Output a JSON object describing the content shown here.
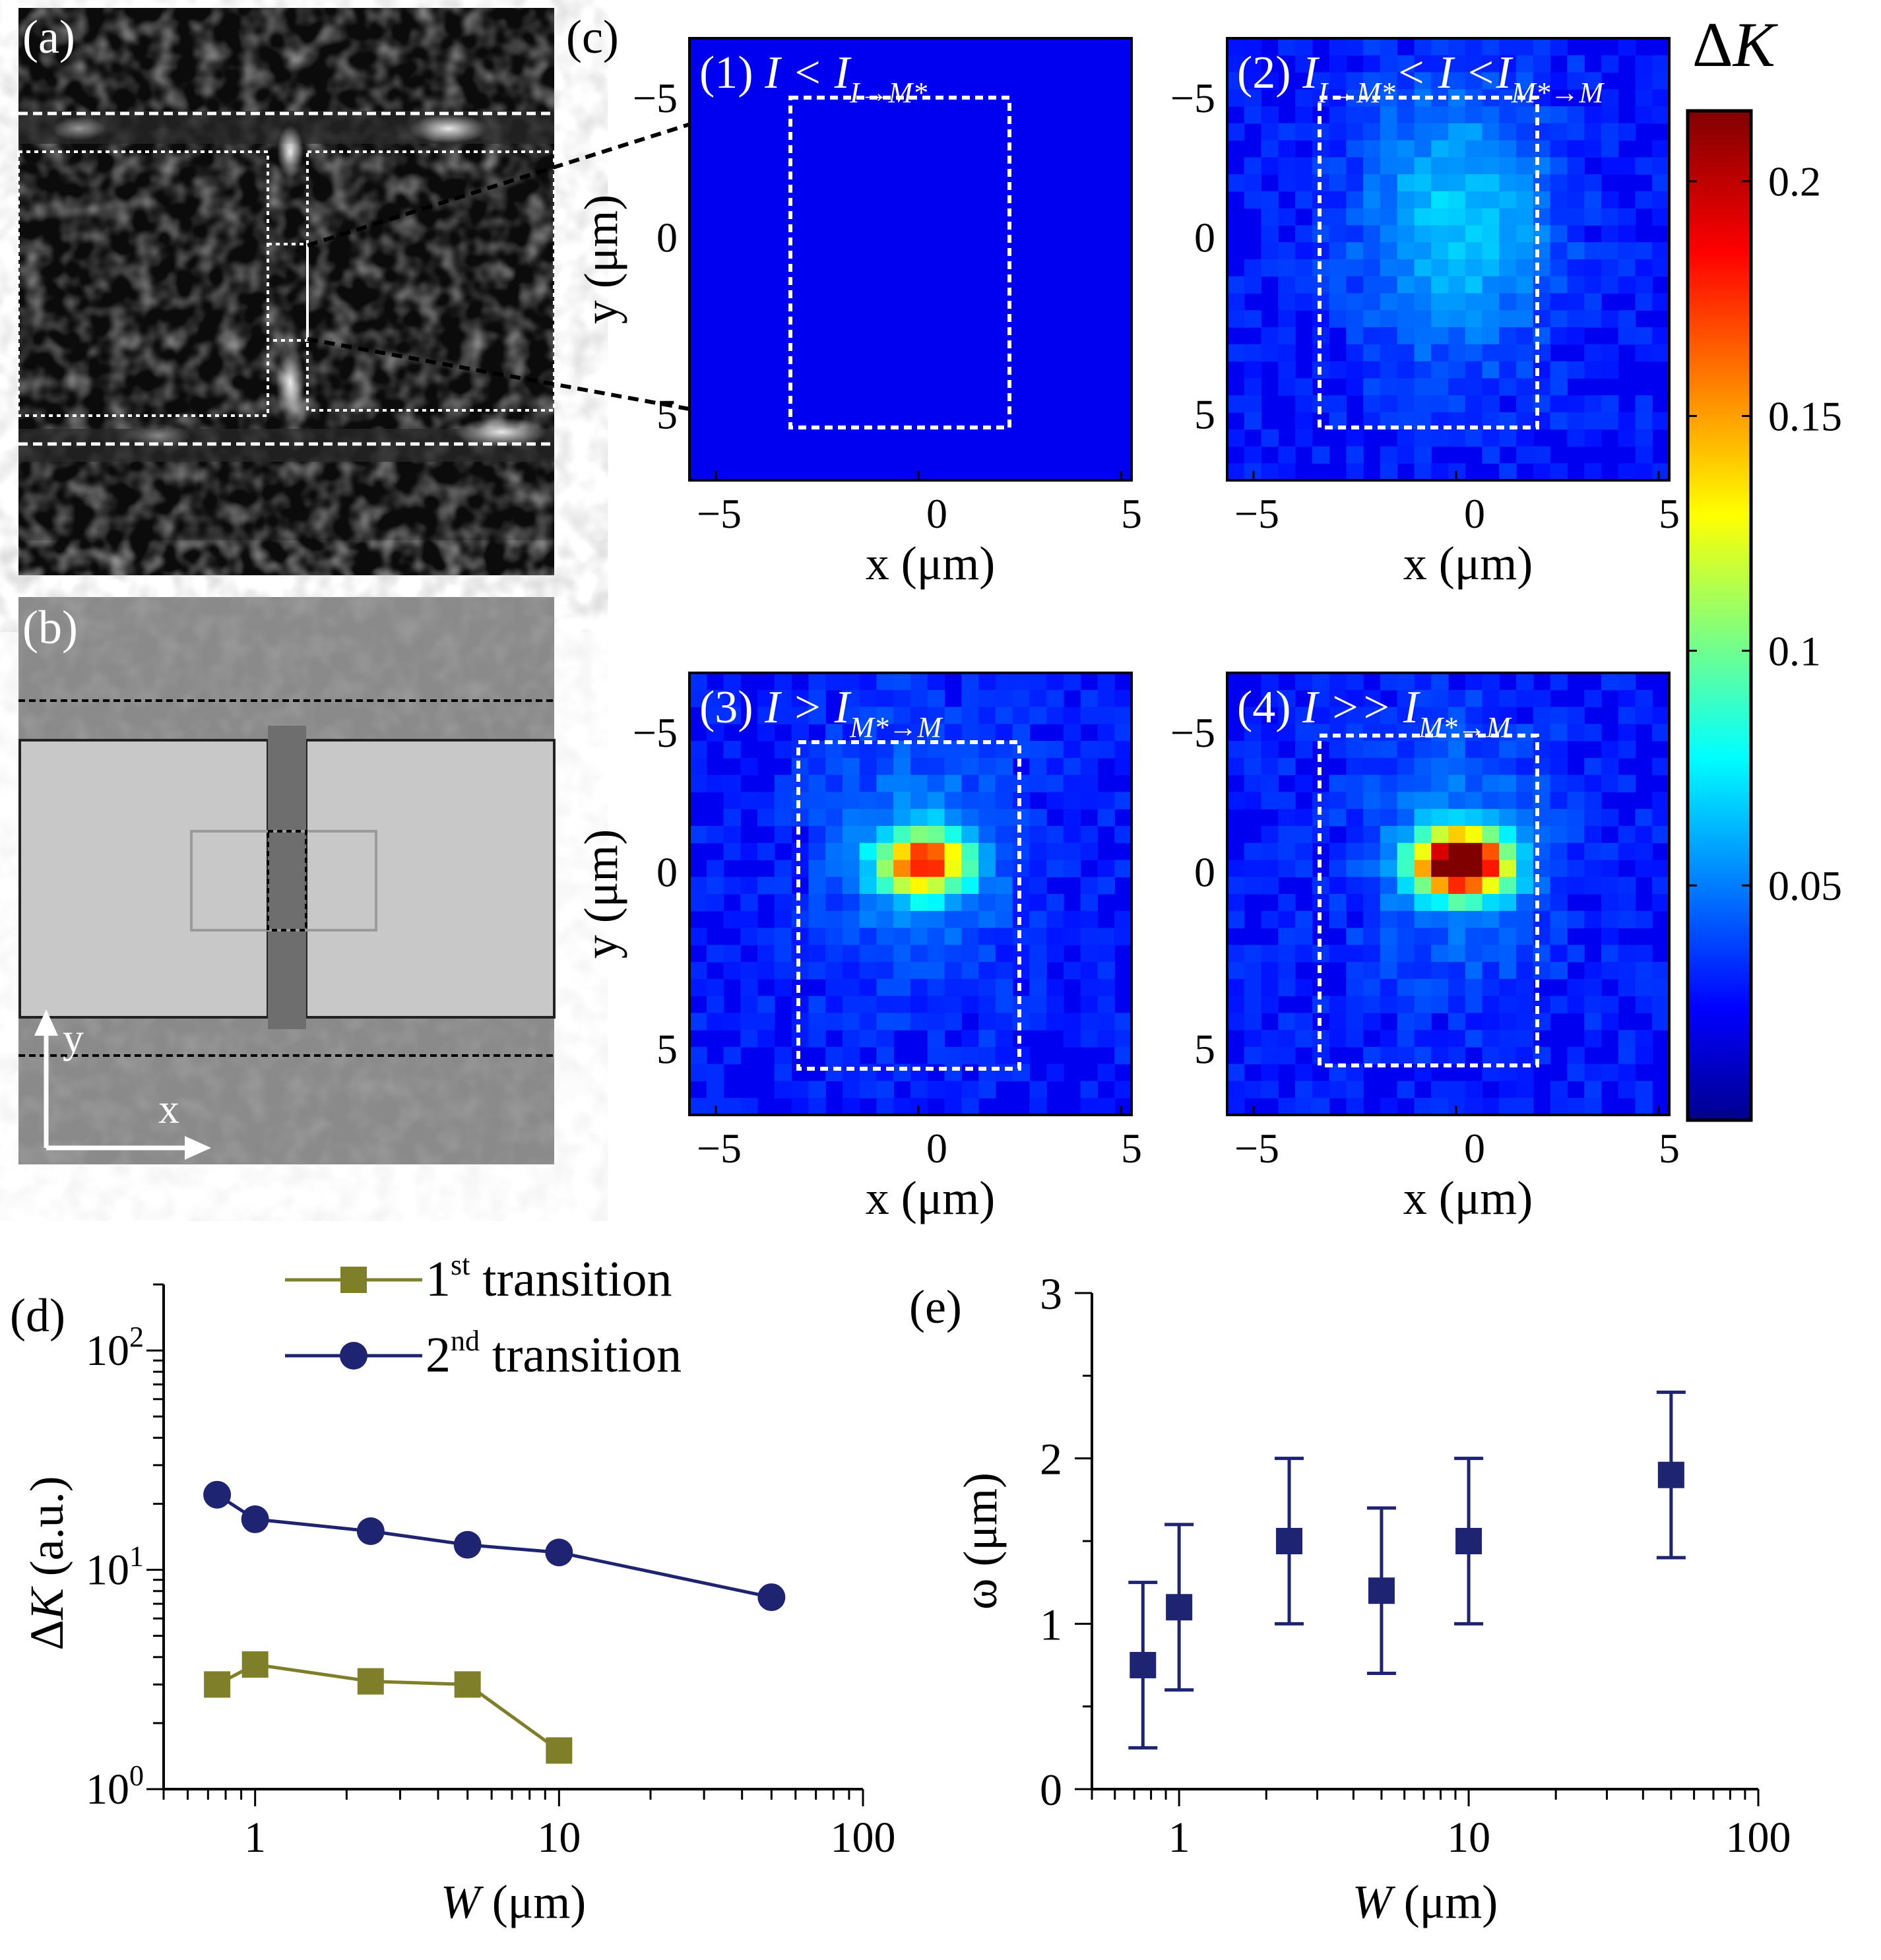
{
  "panels": {
    "a": {
      "label": "(a)"
    },
    "b": {
      "label": "(b)",
      "axis_y": "y",
      "axis_x": "x"
    },
    "c": {
      "label": "(c)"
    },
    "d": {
      "label": "(d)"
    },
    "e": {
      "label": "(e)"
    }
  },
  "colorbar": {
    "title_delta": "Δ",
    "title_var": "K",
    "ticks": [
      {
        "value": 0.2,
        "label": "0.2"
      },
      {
        "value": 0.15,
        "label": "0.15"
      },
      {
        "value": 0.1,
        "label": "0.1"
      },
      {
        "value": 0.05,
        "label": "0.05"
      }
    ],
    "min": 0,
    "max": 0.215
  },
  "heatmaps": [
    {
      "title": "(1) I < I",
      "sub": "I→M*",
      "title2": "",
      "sub2": "",
      "intensity": 0.0
    },
    {
      "title": "(2) I",
      "sub": "I→M*",
      "title2": "< I <I",
      "sub2": "M*→M",
      "intensity": 0.35
    },
    {
      "title": "(3) I > I",
      "sub": "M*→M",
      "title2": "",
      "sub2": "",
      "intensity": 0.6
    },
    {
      "title": "(4) I >>  I",
      "sub": "M*→M",
      "title2": "",
      "sub2": "",
      "intensity": 1.0
    }
  ],
  "heatmap_axes": {
    "xlabel": "x (μm)",
    "ylabel": "y (μm)",
    "xticks": [
      "−5",
      "0",
      "5"
    ],
    "yticks": [
      "−5",
      "0",
      "5"
    ]
  },
  "chart_data": [
    {
      "type": "line",
      "panel": "d",
      "xscale": "log",
      "yscale": "log",
      "xlim": [
        0.5,
        100
      ],
      "ylim": [
        1,
        200
      ],
      "xlabel_var": "W",
      "xlabel_unit": " (μm)",
      "ylabel_var": "ΔK",
      "ylabel_unit": " (a.u.)",
      "xticks": [
        {
          "v": 1,
          "label": "1"
        },
        {
          "v": 10,
          "label": "10"
        },
        {
          "v": 100,
          "label": "100"
        }
      ],
      "yticks": [
        {
          "v": 1,
          "base": "10",
          "exp": "0"
        },
        {
          "v": 10,
          "base": "10",
          "exp": "1"
        },
        {
          "v": 100,
          "base": "10",
          "exp": "2"
        }
      ],
      "series": [
        {
          "name_pre": "1",
          "name_sup": "st",
          "name_post": " transition",
          "color": "#7f7f2a",
          "marker": "square",
          "x": [
            0.75,
            1,
            2.4,
            5,
            10
          ],
          "y": [
            3.0,
            3.7,
            3.1,
            3.0,
            1.5
          ]
        },
        {
          "name_pre": "2",
          "name_sup": "nd",
          "name_post": " transition",
          "color": "#1f2472",
          "marker": "circle",
          "x": [
            0.75,
            1,
            2.4,
            5,
            10,
            50
          ],
          "y": [
            22,
            17,
            15,
            13,
            12,
            7.5
          ]
        }
      ]
    },
    {
      "type": "scatter",
      "panel": "e",
      "xscale": "log",
      "xlim": [
        0.5,
        100
      ],
      "ylim": [
        0,
        3
      ],
      "xlabel_var": "W",
      "xlabel_unit": " (μm)",
      "ylabel": "ω (μm)",
      "xticks": [
        {
          "v": 1,
          "label": "1"
        },
        {
          "v": 10,
          "label": "10"
        },
        {
          "v": 100,
          "label": "100"
        }
      ],
      "yticks": [
        {
          "v": 0,
          "label": "0"
        },
        {
          "v": 1,
          "label": "1"
        },
        {
          "v": 2,
          "label": "2"
        },
        {
          "v": 3,
          "label": "3"
        }
      ],
      "color": "#1f2472",
      "x": [
        0.75,
        1,
        2.4,
        5,
        10,
        50
      ],
      "y": [
        0.75,
        1.1,
        1.5,
        1.2,
        1.5,
        1.9
      ],
      "err": [
        0.5,
        0.5,
        0.5,
        0.5,
        0.5,
        0.5
      ]
    }
  ]
}
